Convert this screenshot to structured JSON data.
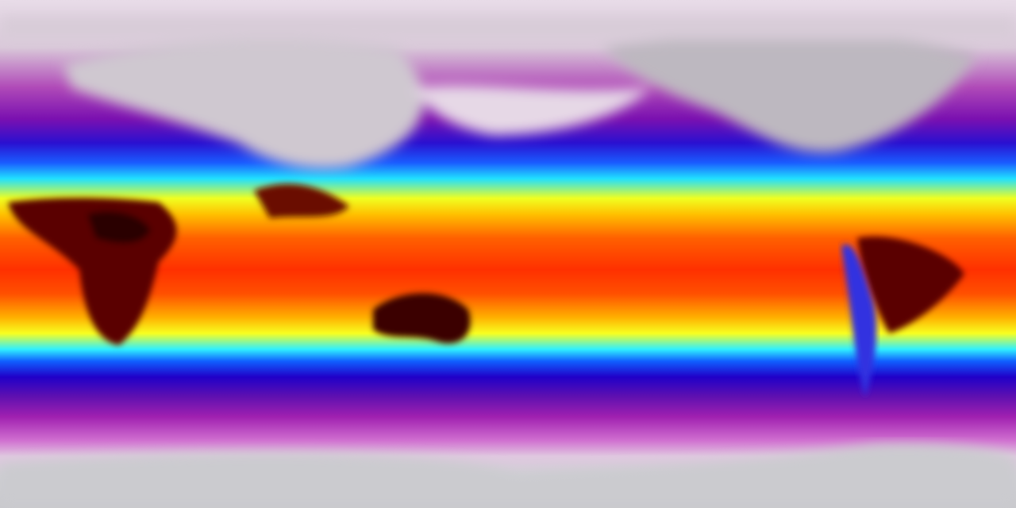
{
  "map": {
    "projection": "equirectangular",
    "colors": {
      "polar": "#cfcfd4",
      "cold": "#a020b0",
      "cool": "#2000c8",
      "mild": "#30f0ff",
      "warm": "#f8ff20",
      "hot": "#ff3000",
      "hottest": "#3a0000"
    }
  }
}
